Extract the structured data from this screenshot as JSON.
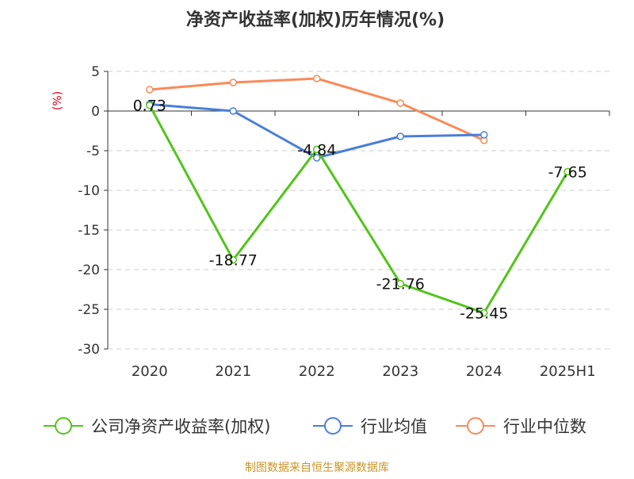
{
  "chart_data": {
    "type": "line",
    "title": "净资产收益率(加权)历年情况(%)",
    "ylabel": "(%)",
    "xlabel": "",
    "categories": [
      "2020",
      "2021",
      "2022",
      "2023",
      "2024",
      "2025H1"
    ],
    "yticks": [
      "5",
      "0",
      "-5",
      "-10",
      "-15",
      "-20",
      "-25",
      "-30"
    ],
    "ylim": [
      -30,
      5
    ],
    "grid": true,
    "legend_position": "bottom",
    "series": [
      {
        "name": "公司净资产收益率(加权)",
        "color": "#52c41a",
        "values": [
          0.73,
          -18.77,
          -4.84,
          -21.76,
          -25.45,
          -7.65
        ],
        "data_labels": [
          "0.73",
          "-18.77",
          "-4.84",
          "-21.76",
          "-25.45",
          "-7.65"
        ]
      },
      {
        "name": "行业均值",
        "color": "#4a7fd8",
        "values": [
          0.85,
          0.0,
          -5.9,
          -3.2,
          -3.0,
          null
        ]
      },
      {
        "name": "行业中位数",
        "color": "#f88b5a",
        "values": [
          2.7,
          3.6,
          4.1,
          1.0,
          -3.7,
          null
        ]
      }
    ]
  },
  "footer": {
    "source": "制图数据来自恒生聚源数据库"
  },
  "colors": {
    "ylabel": "#d9001b",
    "footer": "#c8952a",
    "axis": "#333333",
    "grid": "#cccccc"
  }
}
